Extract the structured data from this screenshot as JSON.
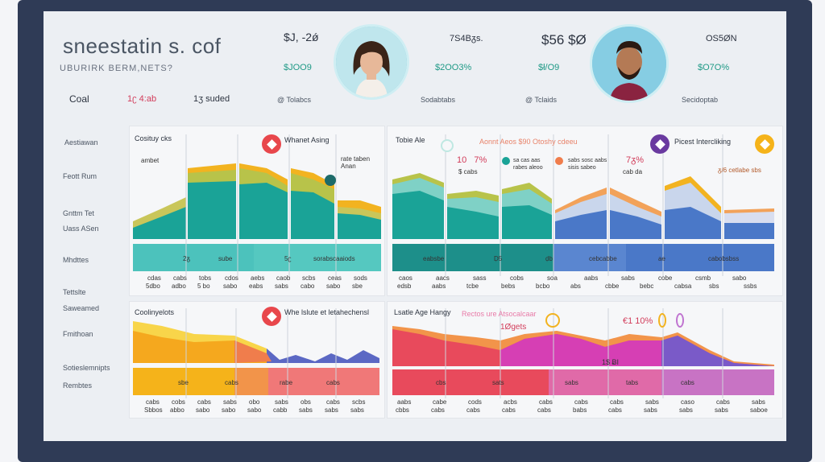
{
  "header": {
    "title": "sneestatin s. cof",
    "subtitle": "UBURIRK BERM,NETS?",
    "stats_row1": [
      "$J, -2ǿ",
      "7S4Bᵹs.",
      "$56 $Ø",
      "OS5ØN"
    ],
    "stats_row2": [
      "$JOO9",
      "$2OO3%",
      "$ł/O9",
      "$O7O%"
    ],
    "meta_row": {
      "goal": "Coal",
      "a": "1ʗ 4:ab",
      "b": "1ʒ  suded",
      "c": "@ Tolabcs",
      "d": "Sodabtabs",
      "e": "@ Tclaids",
      "f": "Secidoptab"
    }
  },
  "sidebar": {
    "items": [
      "Aestiawan",
      "Feott Rum",
      "Gnttm Tet",
      "Uass ASen",
      "Mhdttes",
      "Tettslte",
      "Saweamed",
      "Fmithoan",
      "Sotieslemnipts",
      "Rembtes"
    ]
  },
  "panels": {
    "top_left": {
      "title": "Cosituy cks",
      "badge_label": "Whanet Asing",
      "note_left": "ambet",
      "note_right": "rate taben\nAnan",
      "band_labels": [
        "2ᵹ",
        "sube",
        "5ʗ",
        "sorabscaaiods"
      ],
      "axis_row1": [
        "cdas",
        "cabs",
        "tobs",
        "cdos",
        "aebs",
        "caob",
        "scbs",
        "ceas",
        "sods"
      ],
      "axis_row2": [
        "5dbo",
        "adbo",
        "5 bo",
        "sabo",
        "eabs",
        "sabs",
        "cabo",
        "sabo",
        "sbe"
      ]
    },
    "top_right": {
      "title": "Tobie Ale",
      "header_text": "Aonnt Aeos $90 Otoshy cdeeu",
      "value_1": "10   7%",
      "value_1_sub": "$ cabs",
      "legend_a": "sa cas aas\nrabes aleoo",
      "legend_b": "sabs sosc aabs\nsisis sabeo",
      "value_2": "7ᵹ%",
      "value_2_sub": "cab da",
      "badge_label": "Picest Intercliking",
      "note_right": "ᵹ/6 cetlabe sbs",
      "band_labels": [
        "eabsbe",
        "Ḍ5",
        "ḍb",
        "cebcabbe",
        "ae",
        "cabobsbss"
      ],
      "axis_row1": [
        "caos",
        "aacs",
        "sass",
        "cobs",
        "soa",
        "aabs",
        "sabs",
        "cobe",
        "csmb",
        "sabo"
      ],
      "axis_row2": [
        "edsb",
        "aabs",
        "tcbe",
        "bebs",
        "bcbo",
        "abs",
        "cbbe",
        "bebc",
        "cabsa",
        "sbs",
        "ssbs"
      ]
    },
    "bottom_left": {
      "title": "Coolinyelots",
      "badge_label": "Whe lslute et letahechensl",
      "band_labels": [
        "sbe",
        "cabs",
        "rabe",
        "cabs"
      ],
      "axis_row1": [
        "cabs",
        "cobs",
        "cabs",
        "sabs",
        "obo",
        "sabs",
        "obs",
        "cabs",
        "scbs"
      ],
      "axis_row2": [
        "Sbbos",
        "abbo",
        "sabo",
        "sabo",
        "sabo",
        "cabb",
        "sabs",
        "sabs",
        "sabs"
      ]
    },
    "bottom_right": {
      "title": "Lsatle Age Hangy",
      "header_text": "Rectos ure Atsocalcaar",
      "value_1": "1Øgets",
      "value_2": "€1 10%",
      "value_3": "1$ ɃI",
      "band_labels": [
        "cbs",
        "sats",
        "sabs",
        "tabs",
        "cabs"
      ],
      "axis_row1": [
        "aabs",
        "cabe",
        "cods",
        "acbs",
        "cabs",
        "cabs",
        "cabs",
        "sabs",
        "caso",
        "cabs",
        "sabs"
      ],
      "axis_row2": [
        "cbbs",
        "cabs",
        "cabs",
        "cabs",
        "cabs",
        "babs",
        "cabs",
        "sabs",
        "sabs",
        "sabs",
        "saboe"
      ]
    }
  },
  "colors": {
    "teal": "#17a398",
    "olive": "#b9c24a",
    "orange": "#f29f2a",
    "red": "#e8474c",
    "blue": "#3b6fc4",
    "purple": "#6a3aa0",
    "yellow": "#f5b31a",
    "magenta": "#d63fb4"
  },
  "icons": [
    "diamond-badge-icon",
    "avatar-woman-icon",
    "avatar-man-icon"
  ]
}
